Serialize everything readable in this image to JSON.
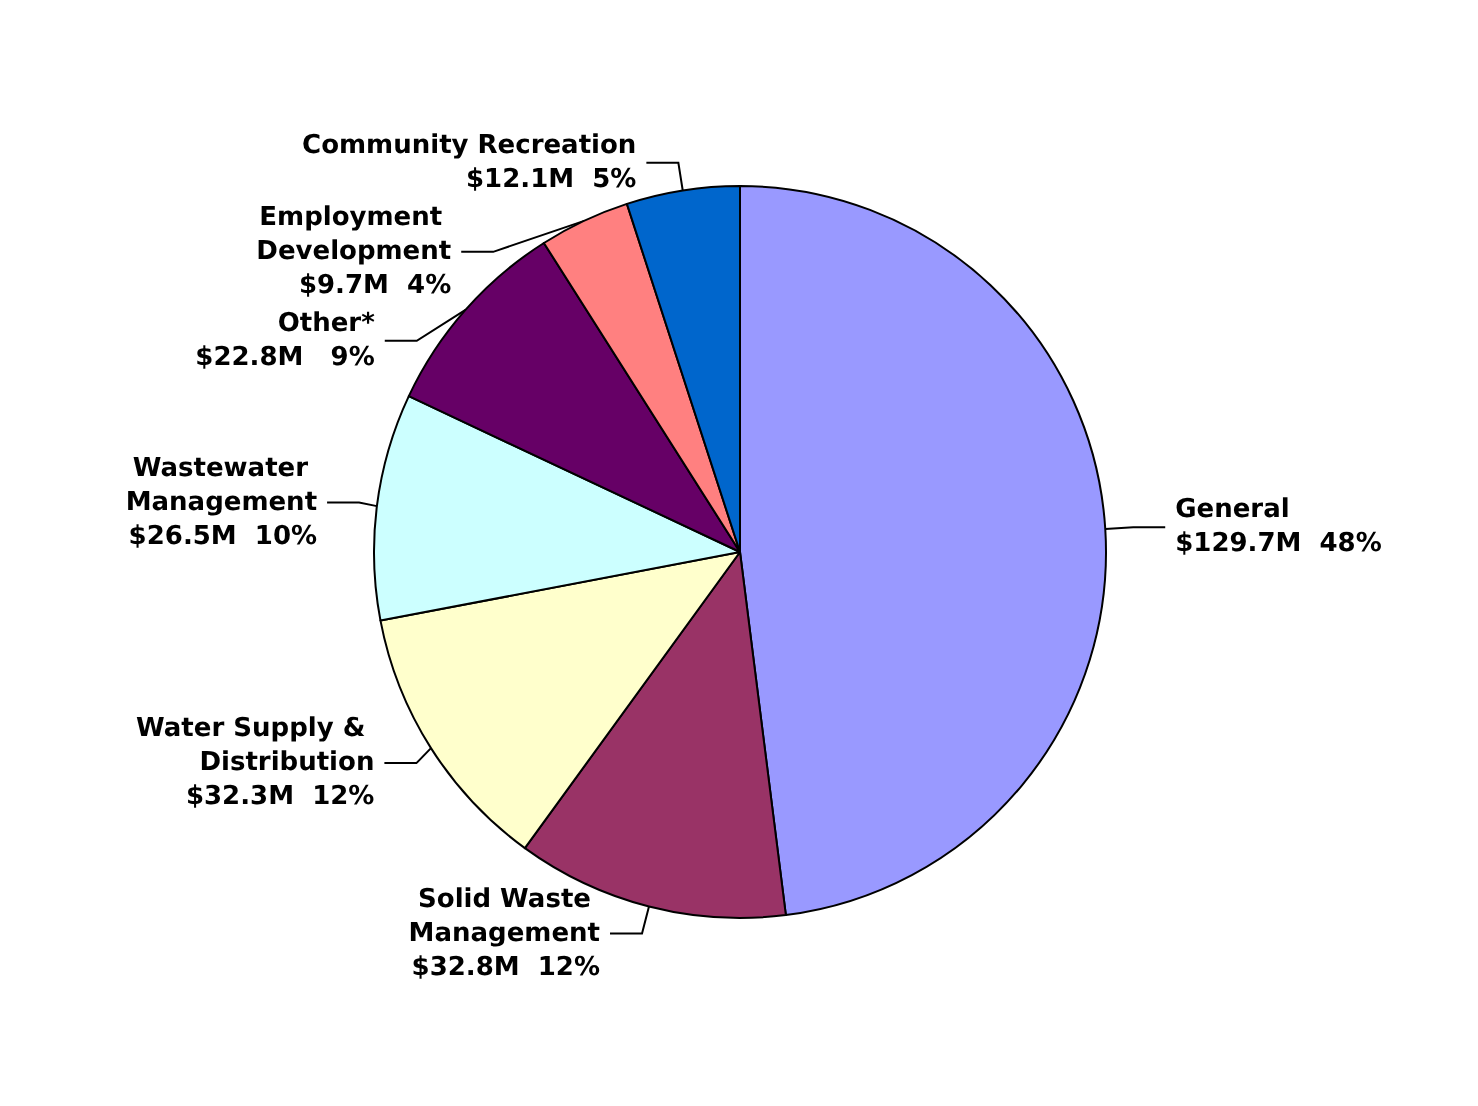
{
  "chart_data": {
    "type": "pie",
    "categories": [
      "General",
      "Solid Waste Management",
      "Water Supply & Distribution",
      "Wastewater Management",
      "Other*",
      "Employment Development",
      "Community Recreation"
    ],
    "values": [
      48,
      12,
      12,
      10,
      9,
      4,
      5
    ],
    "value_labels": [
      "$129.7M  48%",
      "$32.8M  12%",
      "$32.3M  12%",
      "$26.5M  10%",
      "$22.8M   9%",
      "$9.7M  4%",
      "$12.1M  5%"
    ],
    "colors": [
      "#9999ff",
      "#993366",
      "#ffffcc",
      "#ccffff",
      "#660066",
      "#ff8080",
      "#0066cc"
    ]
  }
}
